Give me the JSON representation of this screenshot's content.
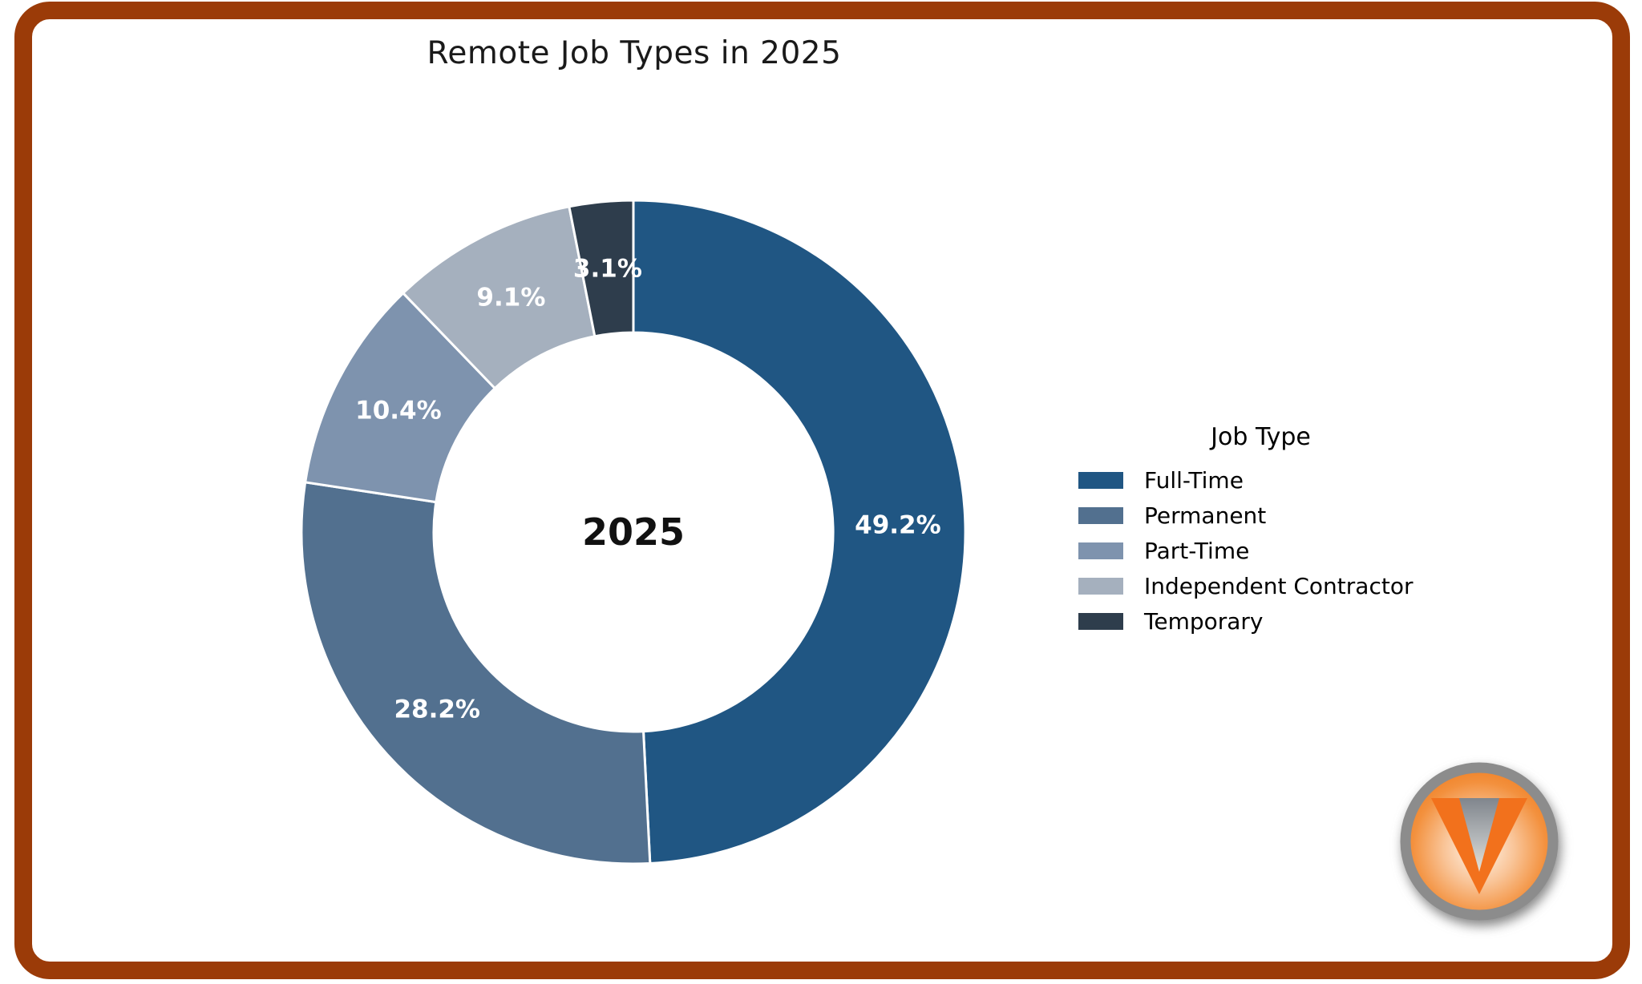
{
  "frame": {
    "border_color": "#9B3B08"
  },
  "chart_data": {
    "type": "pie",
    "variant": "donut",
    "title": "Remote Job Types in 2025",
    "center_label": "2025",
    "legend_title": "Job Type",
    "legend_position": "right",
    "start_angle": "top",
    "direction": "clockwise",
    "label_color": "#FFFFFF",
    "segments": [
      {
        "label": "Full-Time",
        "value": 49.2,
        "pct_label": "49.2%",
        "color": "#205683"
      },
      {
        "label": "Permanent",
        "value": 28.2,
        "pct_label": "28.2%",
        "color": "#52708F"
      },
      {
        "label": "Part-Time",
        "value": 10.4,
        "pct_label": "10.4%",
        "color": "#7E93AE"
      },
      {
        "label": "Independent Contractor",
        "value": 9.1,
        "pct_label": "9.1%",
        "color": "#A5B0BE"
      },
      {
        "label": "Temporary",
        "value": 3.1,
        "pct_label": "3.1%",
        "color": "#2E3D4C"
      }
    ]
  },
  "logo": {
    "letter": "V",
    "orange": "#F2711C",
    "ring_color": "#8C8C8C"
  }
}
